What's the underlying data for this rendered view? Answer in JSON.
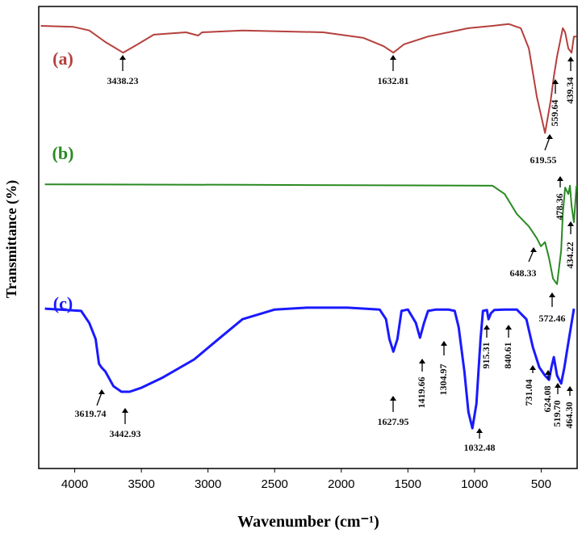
{
  "chart_data": {
    "type": "line",
    "x_label": "Wavenumber (cm⁻¹)",
    "y_label": "Transmittance  (%)",
    "xlim": [
      4270,
      230
    ],
    "ylim": [
      0,
      100
    ],
    "xticks": [
      4000,
      3500,
      3000,
      2500,
      2000,
      1500,
      1000,
      500
    ],
    "series": [
      {
        "name": "(a)",
        "color": "#b5403d",
        "x": [
          4254,
          4012,
          3891,
          3770,
          3637,
          3528,
          3407,
          3165,
          3074,
          3044,
          2741,
          2136,
          1833,
          1682,
          1609,
          1530,
          1349,
          1046,
          865,
          744,
          653,
          592,
          532,
          471,
          429,
          405,
          381,
          338,
          320,
          296,
          272,
          254,
          235
        ],
        "values": [
          95.8,
          95.6,
          94.8,
          92.3,
          90.0,
          91.8,
          93.9,
          94.4,
          93.7,
          94.4,
          94.8,
          94.4,
          93.2,
          91.4,
          90.0,
          91.8,
          93.5,
          95.3,
          95.8,
          96.2,
          95.3,
          90.9,
          80.4,
          72.6,
          79.5,
          84.8,
          89.2,
          95.3,
          94.4,
          90.9,
          90.0,
          93.5,
          93.5
        ],
        "annotations": [
          "3438.23",
          "1632.81",
          "619.55",
          "559.64",
          "439.34"
        ]
      },
      {
        "name": "(b)",
        "color": "#2a8a22",
        "x": [
          4224,
          2741,
          865,
          774,
          683,
          592,
          532,
          502,
          471,
          441,
          411,
          381,
          350,
          338,
          320,
          296,
          284,
          272,
          254,
          235
        ],
        "values": [
          61.5,
          61.4,
          61.2,
          59.4,
          55.1,
          52.4,
          49.8,
          48.1,
          49.0,
          45.5,
          41.1,
          39.9,
          47.2,
          55.1,
          60.8,
          59.4,
          61.2,
          56.8,
          53.3,
          61.2
        ],
        "annotations": [
          "648.33",
          "572.46",
          "478.36",
          "434.22"
        ]
      },
      {
        "name": "(c)",
        "color": "#1a1aff",
        "x": [
          4224,
          3952,
          3891,
          3843,
          3818,
          3800,
          3770,
          3709,
          3649,
          3588,
          3498,
          3346,
          3104,
          2922,
          2741,
          2499,
          2257,
          1954,
          1712,
          1664,
          1639,
          1609,
          1579,
          1548,
          1500,
          1440,
          1409,
          1379,
          1349,
          1288,
          1197,
          1149,
          1119,
          1076,
          1046,
          1016,
          986,
          955,
          937,
          907,
          895,
          877,
          852,
          774,
          683,
          611,
          562,
          514,
          471,
          441,
          423,
          405,
          381,
          350,
          326,
          302,
          272,
          254
        ],
        "values": [
          34.6,
          34.1,
          31.5,
          28.0,
          22.7,
          21.9,
          21.0,
          17.8,
          16.6,
          16.6,
          17.5,
          19.6,
          23.6,
          28.0,
          32.3,
          34.4,
          34.8,
          34.8,
          34.4,
          32.3,
          28.0,
          25.3,
          28.0,
          34.1,
          34.4,
          31.5,
          28.3,
          31.5,
          34.1,
          34.4,
          34.4,
          34.1,
          30.6,
          21.0,
          12.2,
          8.7,
          14.0,
          28.0,
          34.1,
          34.3,
          32.3,
          33.6,
          34.3,
          34.4,
          34.4,
          32.3,
          26.2,
          21.9,
          20.1,
          19.2,
          21.9,
          24.1,
          20.1,
          18.4,
          21.9,
          26.2,
          31.5,
          34.6
        ],
        "annotations": [
          "3619.74",
          "3442.93",
          "1627.95",
          "1419.66",
          "1304.97",
          "1032.48",
          "915.31",
          "840.61",
          "731.04",
          "624.08",
          "519.70",
          "464.30"
        ]
      }
    ]
  }
}
